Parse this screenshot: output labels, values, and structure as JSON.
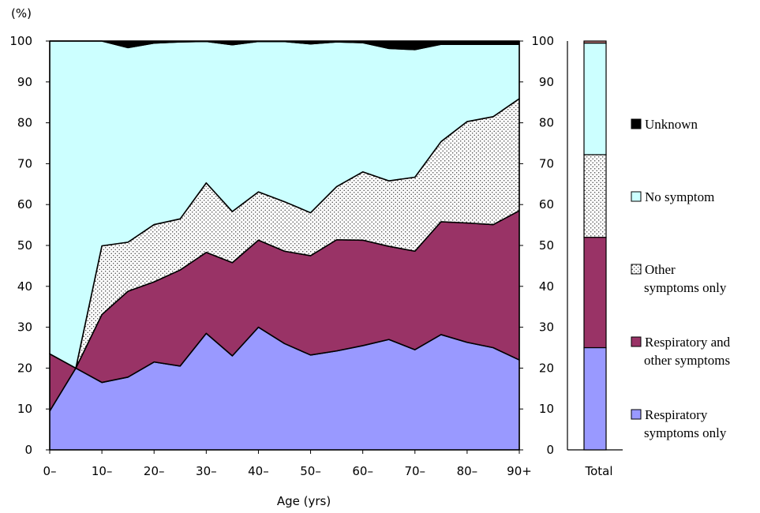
{
  "chart_data": {
    "type": "area",
    "stacked": true,
    "y_unit_label": "(%)",
    "xlabel": "Age (yrs)",
    "ylim": [
      0,
      100
    ],
    "y_ticks": [
      0,
      10,
      20,
      30,
      40,
      50,
      60,
      70,
      80,
      90,
      100
    ],
    "x": [
      0,
      5,
      10,
      15,
      20,
      25,
      30,
      35,
      40,
      45,
      50,
      55,
      60,
      65,
      70,
      75,
      80,
      85,
      90
    ],
    "x_tick_labels": [
      "0–",
      "10–",
      "20–",
      "30–",
      "40–",
      "50–",
      "60–",
      "70–",
      "80–",
      "90+"
    ],
    "x_tick_positions": [
      0,
      10,
      20,
      30,
      40,
      50,
      60,
      70,
      80,
      90
    ],
    "series": [
      {
        "name": "Respiratory symptoms only",
        "color": "#9999ff",
        "pattern": "solid",
        "values": [
          9.5,
          20,
          16.5,
          17.8,
          21.5,
          20.5,
          28.5,
          23,
          30,
          26,
          23.2,
          24.2,
          25.5,
          27,
          24.5,
          28.2,
          26.3,
          25,
          22
        ]
      },
      {
        "name": "Respiratory and other symptoms",
        "color": "#993366",
        "pattern": "solid",
        "values": [
          14,
          0,
          16.6,
          21,
          19.6,
          23.5,
          19.8,
          22.8,
          21.3,
          22.6,
          24.3,
          27.2,
          25.8,
          22.8,
          24.1,
          27.6,
          29.2,
          30.1,
          36.5
        ]
      },
      {
        "name": "Other symptoms only",
        "color": "#ffffff",
        "pattern": "dots",
        "values": [
          0,
          0,
          16.8,
          12,
          14,
          12.5,
          17,
          12.5,
          11.8,
          12.1,
          10.5,
          13,
          16.7,
          16,
          18.1,
          19.6,
          24.8,
          26.4,
          27.4
        ]
      },
      {
        "name": "No symptom",
        "color": "#ccffff",
        "pattern": "solid",
        "values": [
          76.5,
          80,
          50.1,
          47.6,
          44.4,
          43.3,
          34.6,
          40.8,
          36.8,
          39.2,
          41.3,
          35.4,
          31.6,
          32.4,
          31.2,
          23.8,
          18.9,
          17.7,
          13.3
        ]
      },
      {
        "name": "Unknown",
        "color": "#000000",
        "pattern": "solid",
        "values": [
          0,
          0,
          0,
          1.6,
          0.5,
          0.2,
          0.1,
          0.9,
          0.1,
          0.1,
          0.7,
          0.2,
          0.4,
          1.8,
          2.1,
          0.8,
          0.8,
          0.8,
          0.8
        ]
      }
    ],
    "total_bar": {
      "label": "Total",
      "values": [
        25,
        27,
        20.2,
        27.3,
        0.5
      ]
    },
    "legend_order": [
      {
        "index": 4,
        "lines": [
          "Unknown"
        ]
      },
      {
        "index": 3,
        "lines": [
          "No symptom"
        ]
      },
      {
        "index": 2,
        "lines": [
          "Other",
          "symptoms only"
        ]
      },
      {
        "index": 1,
        "lines": [
          "Respiratory and",
          "other symptoms"
        ]
      },
      {
        "index": 0,
        "lines": [
          "Respiratory",
          "symptoms only"
        ]
      }
    ],
    "legend_placement": "right",
    "grid": false
  }
}
